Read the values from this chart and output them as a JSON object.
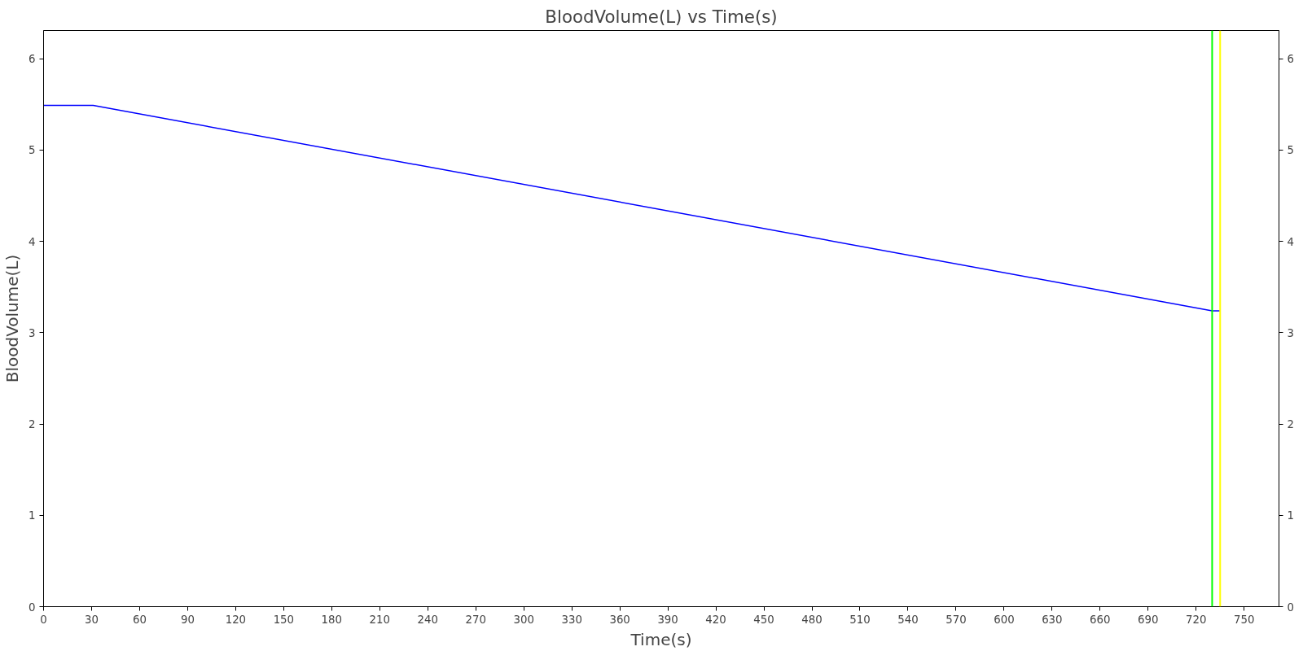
{
  "chart_data": {
    "type": "line",
    "title": "BloodVolume(L) vs Time(s)",
    "xlabel": "Time(s)",
    "ylabel": "BloodVolume(L)",
    "x": [
      0,
      31,
      730,
      735
    ],
    "series": [
      {
        "color": "#0000ff",
        "values": [
          5.49,
          5.49,
          3.24,
          3.24
        ]
      }
    ],
    "xlim": [
      0,
      771.75
    ],
    "xticks": [
      0,
      30,
      60,
      90,
      120,
      150,
      180,
      210,
      240,
      270,
      300,
      330,
      360,
      390,
      420,
      450,
      480,
      510,
      540,
      570,
      600,
      630,
      660,
      690,
      720,
      750
    ],
    "ylim": [
      0,
      6.31
    ],
    "yticks": [
      0,
      1,
      2,
      3,
      4,
      5,
      6
    ],
    "y2lim": [
      0,
      6.31
    ],
    "y2ticks": [
      0,
      1,
      2,
      3,
      4,
      5,
      6
    ],
    "ref_lines": [
      {
        "axis": "x",
        "value": 730,
        "color": "#00ff00"
      },
      {
        "axis": "x",
        "value": 735,
        "color": "#ffff00"
      }
    ],
    "grid": false,
    "marker": "none",
    "line_style": "solid"
  }
}
